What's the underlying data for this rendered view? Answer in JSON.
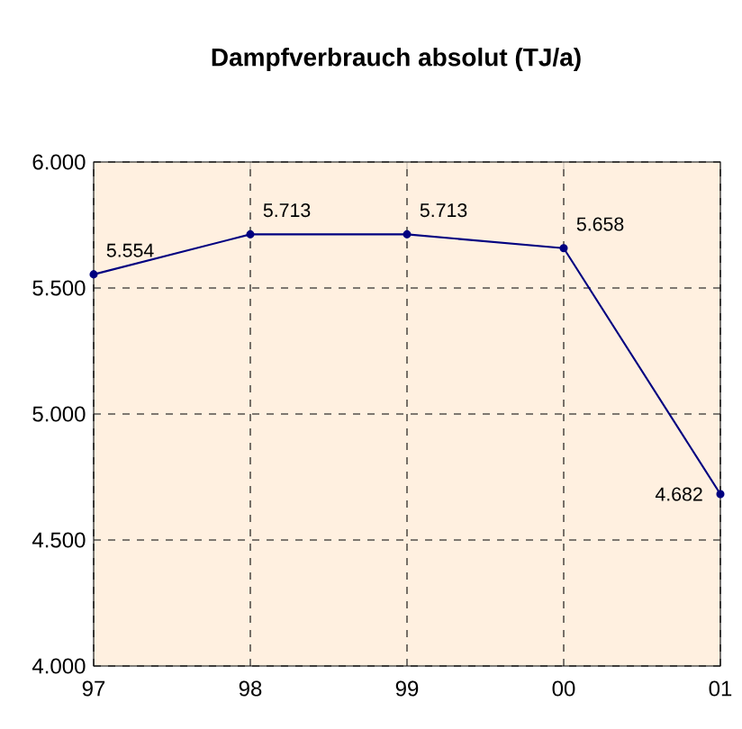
{
  "chart_data": {
    "type": "line",
    "title": "Dampfverbrauch absolut (TJ/a)",
    "categories": [
      "97",
      "98",
      "99",
      "00",
      "01"
    ],
    "series": [
      {
        "color": "#000080",
        "values": [
          5554,
          5713,
          5713,
          5658,
          4682
        ],
        "value_labels": [
          "5.554",
          "5.713",
          "5.713",
          "5.658",
          "4.682"
        ]
      }
    ],
    "ylim": [
      4000,
      6000
    ],
    "yticks": [
      {
        "value": 4000,
        "label": "4.000"
      },
      {
        "value": 4500,
        "label": "4.500"
      },
      {
        "value": 5000,
        "label": "5.000"
      },
      {
        "value": 5500,
        "label": "5.500"
      },
      {
        "value": 6000,
        "label": "6.000"
      }
    ],
    "grid": true,
    "marker": "circle",
    "line_style": "solid"
  }
}
